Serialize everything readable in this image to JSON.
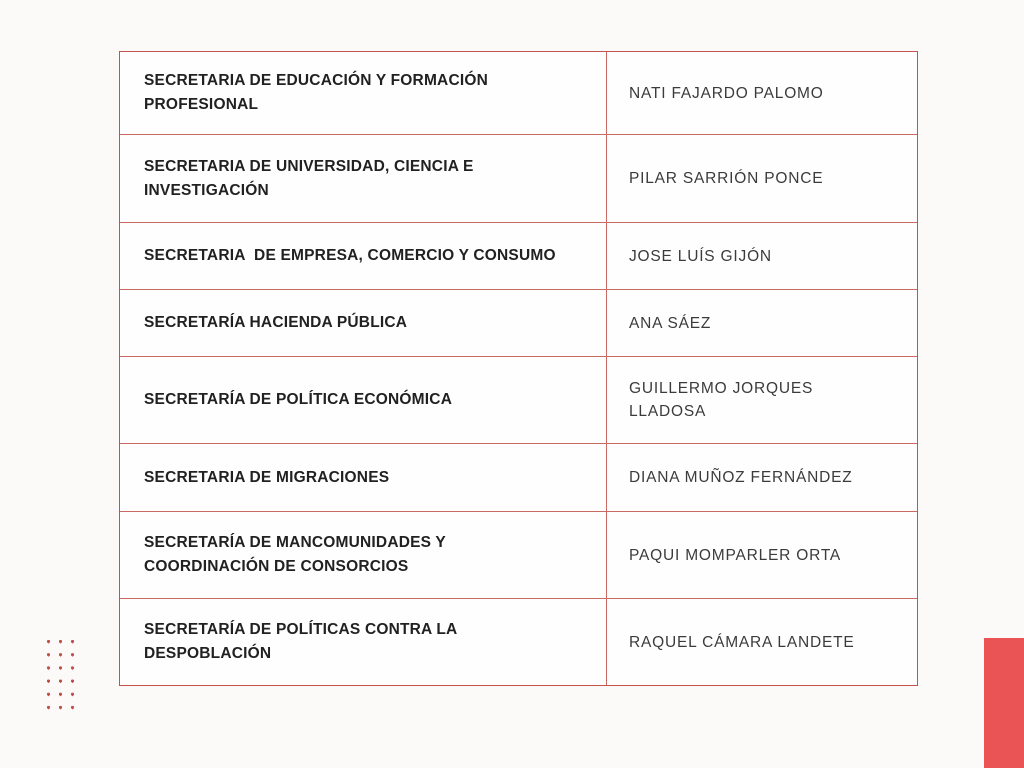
{
  "colors": {
    "page_background": "#fbfaf9",
    "table_border": "#c2544d",
    "grid_line": "#c96a62",
    "secretariat_text": "#212121",
    "person_text": "#3b3b3b",
    "dot_color": "#bd4f4a",
    "accent_rect": "#ea5455"
  },
  "table": {
    "rows": [
      {
        "secretariat": "SECRETARIA DE EDUCACIÓN Y FORMACIÓN\nPROFESIONAL",
        "name": "NATI FAJARDO PALOMO"
      },
      {
        "secretariat": "SECRETARIA DE UNIVERSIDAD, CIENCIA E\nINVESTIGACIÓN",
        "name": "PILAR SARRIÓN PONCE"
      },
      {
        "secretariat": "SECRETARIA  DE EMPRESA, COMERCIO Y CONSUMO",
        "name": "JOSE LUÍS GIJÓN"
      },
      {
        "secretariat": "SECRETARÍA HACIENDA PÚBLICA",
        "name": "ANA SÁEZ"
      },
      {
        "secretariat": "SECRETARÍA DE POLÍTICA ECONÓMICA",
        "name": "GUILLERMO JORQUES\nLLADOSA"
      },
      {
        "secretariat": "SECRETARIA DE MIGRACIONES",
        "name": "DIANA MUÑOZ FERNÁNDEZ"
      },
      {
        "secretariat": "SECRETARÍA DE MANCOMUNIDADES Y\nCOORDINACIÓN DE CONSORCIOS",
        "name": "PAQUI MOMPARLER ORTA"
      },
      {
        "secretariat": "SECRETARÍA DE POLÍTICAS CONTRA LA\nDESPOBLACIÓN",
        "name": "RAQUEL CÁMARA LANDETE"
      }
    ]
  },
  "decorations": {
    "dot_grid": {
      "columns": 3,
      "rows": 6
    }
  }
}
